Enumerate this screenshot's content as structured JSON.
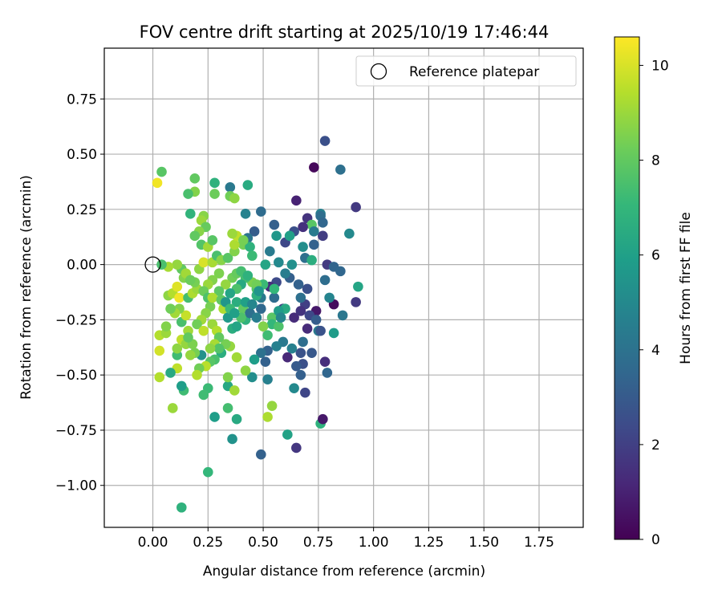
{
  "chart_data": {
    "type": "scatter",
    "title": "FOV centre drift starting at 2025/10/19 17:46:44",
    "xlabel": "Angular distance from reference (arcmin)",
    "ylabel": "Rotation from reference (arcmin)",
    "xlim": [
      -0.22,
      1.95
    ],
    "ylim": [
      -1.19,
      0.98
    ],
    "xticks": [
      0.0,
      0.25,
      0.5,
      0.75,
      1.0,
      1.25,
      1.5,
      1.75
    ],
    "xtick_labels": [
      "0.00",
      "0.25",
      "0.50",
      "0.75",
      "1.00",
      "1.25",
      "1.50",
      "1.75"
    ],
    "yticks": [
      -1.0,
      -0.75,
      -0.5,
      -0.25,
      0.0,
      0.25,
      0.5,
      0.75
    ],
    "ytick_labels": [
      "−1.00",
      "−0.75",
      "−0.50",
      "−0.25",
      "0.00",
      "0.25",
      "0.50",
      "0.75"
    ],
    "grid": true,
    "legend": {
      "position": "top-right",
      "entries": [
        "Reference platepar"
      ]
    },
    "reference_point": {
      "label": "Reference platepar",
      "x": 0.0,
      "y": 0.0
    },
    "colorbar": {
      "label": "Hours from first FF file",
      "colormap": "viridis",
      "range": [
        0,
        10.6
      ],
      "ticks": [
        0,
        2,
        4,
        6,
        8,
        10
      ],
      "tick_labels": [
        "0",
        "2",
        "4",
        "6",
        "8",
        "10"
      ]
    },
    "points": [
      [
        0.02,
        0.37,
        10.4
      ],
      [
        0.04,
        0.42,
        7.8
      ],
      [
        0.19,
        0.39,
        8.0
      ],
      [
        0.19,
        0.33,
        8.6
      ],
      [
        0.16,
        0.32,
        7.5
      ],
      [
        0.17,
        0.23,
        6.9
      ],
      [
        0.23,
        0.22,
        8.7
      ],
      [
        0.22,
        0.2,
        9.0
      ],
      [
        0.24,
        0.17,
        8.1
      ],
      [
        0.21,
        0.15,
        8.7
      ],
      [
        0.19,
        0.13,
        8.0
      ],
      [
        0.28,
        0.37,
        6.8
      ],
      [
        0.28,
        0.32,
        8.2
      ],
      [
        0.35,
        0.35,
        4.3
      ],
      [
        0.35,
        0.31,
        8.3
      ],
      [
        0.37,
        0.3,
        8.8
      ],
      [
        0.43,
        0.36,
        6.5
      ],
      [
        0.42,
        0.23,
        4.7
      ],
      [
        0.49,
        0.24,
        3.7
      ],
      [
        0.55,
        0.18,
        3.2
      ],
      [
        0.65,
        0.29,
        1.0
      ],
      [
        0.73,
        0.44,
        0.2
      ],
      [
        0.78,
        0.56,
        2.6
      ],
      [
        0.85,
        0.43,
        3.9
      ],
      [
        0.92,
        0.26,
        1.8
      ],
      [
        0.89,
        0.14,
        5.0
      ],
      [
        0.7,
        0.21,
        1.6
      ],
      [
        0.76,
        0.23,
        4.6
      ],
      [
        0.76,
        0.22,
        3.8
      ],
      [
        0.72,
        0.18,
        7.8
      ],
      [
        0.77,
        0.19,
        3.5
      ],
      [
        0.77,
        0.13,
        1.9
      ],
      [
        0.73,
        0.15,
        4.4
      ],
      [
        0.68,
        0.17,
        1.5
      ],
      [
        0.64,
        0.15,
        2.6
      ],
      [
        0.6,
        0.1,
        2.3
      ],
      [
        0.68,
        0.08,
        5.2
      ],
      [
        0.73,
        0.09,
        3.3
      ],
      [
        0.62,
        0.13,
        6.0
      ],
      [
        0.56,
        0.13,
        5.6
      ],
      [
        0.46,
        0.15,
        3.1
      ],
      [
        0.43,
        0.12,
        4.1
      ],
      [
        0.41,
        0.09,
        8.4
      ],
      [
        0.44,
        0.08,
        6.8
      ],
      [
        0.45,
        0.04,
        7.2
      ],
      [
        0.53,
        0.06,
        4.4
      ],
      [
        0.57,
        0.01,
        5.0
      ],
      [
        0.51,
        0.0,
        6.2
      ],
      [
        0.63,
        0.0,
        5.3
      ],
      [
        0.69,
        0.03,
        3.9
      ],
      [
        0.72,
        0.02,
        6.6
      ],
      [
        0.79,
        0.0,
        1.8
      ],
      [
        0.82,
        -0.01,
        3.4
      ],
      [
        0.85,
        -0.03,
        3.5
      ],
      [
        0.78,
        -0.07,
        3.8
      ],
      [
        0.93,
        -0.1,
        6.2
      ],
      [
        0.92,
        -0.17,
        1.8
      ],
      [
        0.86,
        -0.23,
        4.2
      ],
      [
        0.82,
        -0.18,
        0.3
      ],
      [
        0.8,
        -0.15,
        4.8
      ],
      [
        0.74,
        -0.21,
        0.7
      ],
      [
        0.69,
        -0.18,
        2.0
      ],
      [
        0.67,
        -0.15,
        3.9
      ],
      [
        0.7,
        -0.11,
        2.6
      ],
      [
        0.66,
        -0.09,
        3.3
      ],
      [
        0.62,
        -0.06,
        3.2
      ],
      [
        0.6,
        -0.04,
        4.5
      ],
      [
        0.56,
        -0.08,
        2.4
      ],
      [
        0.53,
        -0.1,
        1.4
      ],
      [
        0.5,
        -0.09,
        7.2
      ],
      [
        0.45,
        -0.08,
        8.5
      ],
      [
        0.47,
        -0.11,
        7.7
      ],
      [
        0.42,
        -0.06,
        7.4
      ],
      [
        0.4,
        -0.09,
        6.4
      ],
      [
        0.38,
        -0.11,
        7.6
      ],
      [
        0.35,
        -0.13,
        6.2
      ],
      [
        0.38,
        -0.17,
        6.6
      ],
      [
        0.41,
        -0.2,
        8.0
      ],
      [
        0.42,
        -0.25,
        6.8
      ],
      [
        0.44,
        -0.22,
        3.9
      ],
      [
        0.49,
        -0.2,
        3.6
      ],
      [
        0.49,
        -0.15,
        4.3
      ],
      [
        0.55,
        -0.15,
        3.7
      ],
      [
        0.59,
        -0.2,
        2.1
      ],
      [
        0.54,
        -0.24,
        7.8
      ],
      [
        0.54,
        -0.27,
        7.0
      ],
      [
        0.5,
        -0.28,
        8.6
      ],
      [
        0.52,
        -0.32,
        7.3
      ],
      [
        0.57,
        -0.28,
        7.6
      ],
      [
        0.6,
        -0.2,
        6.4
      ],
      [
        0.64,
        -0.24,
        1.3
      ],
      [
        0.67,
        -0.21,
        1.6
      ],
      [
        0.71,
        -0.23,
        2.3
      ],
      [
        0.74,
        -0.25,
        3.1
      ],
      [
        0.7,
        -0.29,
        1.3
      ],
      [
        0.75,
        -0.3,
        4.3
      ],
      [
        0.76,
        -0.3,
        2.7
      ],
      [
        0.82,
        -0.31,
        5.8
      ],
      [
        0.72,
        -0.4,
        2.9
      ],
      [
        0.68,
        -0.45,
        2.6
      ],
      [
        0.65,
        -0.46,
        3.0
      ],
      [
        0.67,
        -0.4,
        2.7
      ],
      [
        0.68,
        -0.35,
        3.8
      ],
      [
        0.63,
        -0.38,
        4.6
      ],
      [
        0.61,
        -0.42,
        1.2
      ],
      [
        0.59,
        -0.35,
        4.3
      ],
      [
        0.56,
        -0.37,
        4.6
      ],
      [
        0.52,
        -0.39,
        3.3
      ],
      [
        0.49,
        -0.4,
        4.0
      ],
      [
        0.51,
        -0.44,
        3.3
      ],
      [
        0.46,
        -0.43,
        5.9
      ],
      [
        0.45,
        -0.51,
        5.2
      ],
      [
        0.52,
        -0.52,
        4.6
      ],
      [
        0.54,
        -0.64,
        8.9
      ],
      [
        0.52,
        -0.69,
        9.3
      ],
      [
        0.61,
        -0.77,
        6.1
      ],
      [
        0.64,
        -0.56,
        5.0
      ],
      [
        0.67,
        -0.5,
        3.2
      ],
      [
        0.69,
        -0.58,
        2.2
      ],
      [
        0.78,
        -0.44,
        1.4
      ],
      [
        0.79,
        -0.49,
        3.5
      ],
      [
        0.76,
        -0.72,
        6.8
      ],
      [
        0.77,
        -0.7,
        0.7
      ],
      [
        0.65,
        -0.83,
        1.7
      ],
      [
        0.49,
        -0.86,
        3.3
      ],
      [
        0.36,
        -0.79,
        5.4
      ],
      [
        0.38,
        -0.7,
        6.4
      ],
      [
        0.34,
        -0.65,
        7.4
      ],
      [
        0.34,
        -0.55,
        6.3
      ],
      [
        0.37,
        -0.57,
        9.1
      ],
      [
        0.34,
        -0.51,
        8.6
      ],
      [
        0.42,
        -0.48,
        8.8
      ],
      [
        0.38,
        -0.42,
        9.1
      ],
      [
        0.35,
        -0.37,
        8.9
      ],
      [
        0.33,
        -0.36,
        8.4
      ],
      [
        0.31,
        -0.4,
        6.6
      ],
      [
        0.28,
        -0.43,
        7.5
      ],
      [
        0.26,
        -0.44,
        7.8
      ],
      [
        0.24,
        -0.46,
        9.5
      ],
      [
        0.21,
        -0.47,
        8.3
      ],
      [
        0.2,
        -0.5,
        9.4
      ],
      [
        0.25,
        -0.56,
        7.2
      ],
      [
        0.23,
        -0.59,
        7.3
      ],
      [
        0.28,
        -0.69,
        5.9
      ],
      [
        0.25,
        -0.94,
        7.0
      ],
      [
        0.13,
        -1.1,
        6.8
      ],
      [
        0.14,
        -0.57,
        7.3
      ],
      [
        0.13,
        -0.55,
        5.9
      ],
      [
        0.09,
        -0.65,
        9.0
      ],
      [
        0.11,
        -0.47,
        9.6
      ],
      [
        0.08,
        -0.49,
        6.4
      ],
      [
        0.03,
        -0.51,
        9.4
      ],
      [
        0.03,
        -0.39,
        9.9
      ],
      [
        0.03,
        -0.32,
        9.4
      ],
      [
        0.06,
        -0.31,
        9.0
      ],
      [
        0.06,
        -0.28,
        8.6
      ],
      [
        0.11,
        -0.41,
        7.3
      ],
      [
        0.11,
        -0.38,
        8.8
      ],
      [
        0.13,
        -0.34,
        9.6
      ],
      [
        0.15,
        -0.36,
        8.9
      ],
      [
        0.16,
        -0.3,
        9.1
      ],
      [
        0.13,
        -0.26,
        7.5
      ],
      [
        0.15,
        -0.23,
        9.7
      ],
      [
        0.12,
        -0.2,
        8.6
      ],
      [
        0.1,
        -0.22,
        9.1
      ],
      [
        0.08,
        -0.2,
        8.3
      ],
      [
        0.07,
        -0.14,
        8.8
      ],
      [
        0.09,
        -0.13,
        9.4
      ],
      [
        0.11,
        -0.1,
        10.1
      ],
      [
        0.12,
        -0.15,
        10.4
      ],
      [
        0.16,
        -0.15,
        7.4
      ],
      [
        0.18,
        -0.13,
        9.3
      ],
      [
        0.2,
        -0.11,
        9.0
      ],
      [
        0.19,
        -0.08,
        8.4
      ],
      [
        0.14,
        -0.06,
        8.6
      ],
      [
        0.13,
        -0.02,
        8.0
      ],
      [
        0.11,
        0.0,
        8.9
      ],
      [
        0.07,
        -0.01,
        9.2
      ],
      [
        0.04,
        0.0,
        7.5
      ],
      [
        0.15,
        -0.04,
        9.1
      ],
      [
        0.17,
        -0.07,
        8.2
      ],
      [
        0.21,
        -0.02,
        8.8
      ],
      [
        0.23,
        0.01,
        10.0
      ],
      [
        0.27,
        0.01,
        9.2
      ],
      [
        0.29,
        0.04,
        7.5
      ],
      [
        0.31,
        0.02,
        8.7
      ],
      [
        0.34,
        0.03,
        7.8
      ],
      [
        0.37,
        0.06,
        8.6
      ],
      [
        0.37,
        0.09,
        9.3
      ],
      [
        0.38,
        0.13,
        9.6
      ],
      [
        0.36,
        0.14,
        9.0
      ],
      [
        0.41,
        0.11,
        8.4
      ],
      [
        0.22,
        0.09,
        7.7
      ],
      [
        0.25,
        0.08,
        9.1
      ],
      [
        0.27,
        0.11,
        7.8
      ],
      [
        0.3,
        -0.04,
        8.5
      ],
      [
        0.27,
        -0.07,
        8.6
      ],
      [
        0.25,
        -0.09,
        9.0
      ],
      [
        0.23,
        -0.12,
        8.2
      ],
      [
        0.25,
        -0.15,
        7.6
      ],
      [
        0.26,
        -0.19,
        8.4
      ],
      [
        0.24,
        -0.22,
        8.7
      ],
      [
        0.22,
        -0.25,
        9.1
      ],
      [
        0.2,
        -0.27,
        8.3
      ],
      [
        0.23,
        -0.3,
        9.6
      ],
      [
        0.27,
        -0.27,
        9.0
      ],
      [
        0.29,
        -0.3,
        9.4
      ],
      [
        0.3,
        -0.33,
        8.0
      ],
      [
        0.28,
        -0.36,
        9.2
      ],
      [
        0.3,
        -0.38,
        7.7
      ],
      [
        0.26,
        -0.38,
        8.8
      ],
      [
        0.22,
        -0.41,
        5.4
      ],
      [
        0.19,
        -0.4,
        8.4
      ],
      [
        0.17,
        -0.41,
        8.9
      ],
      [
        0.18,
        -0.36,
        8.5
      ],
      [
        0.16,
        -0.33,
        8.0
      ],
      [
        0.32,
        -0.2,
        9.3
      ],
      [
        0.34,
        -0.24,
        5.7
      ],
      [
        0.36,
        -0.29,
        6.6
      ],
      [
        0.38,
        -0.28,
        6.2
      ],
      [
        0.4,
        -0.24,
        7.6
      ],
      [
        0.42,
        -0.17,
        6.0
      ],
      [
        0.45,
        -0.18,
        4.9
      ],
      [
        0.47,
        -0.24,
        4.5
      ],
      [
        0.47,
        -0.14,
        6.7
      ],
      [
        0.36,
        -0.06,
        8.3
      ],
      [
        0.33,
        -0.09,
        8.9
      ],
      [
        0.3,
        -0.12,
        7.9
      ],
      [
        0.27,
        -0.15,
        9.3
      ],
      [
        0.31,
        -0.16,
        8.0
      ],
      [
        0.33,
        -0.17,
        5.6
      ],
      [
        0.35,
        -0.2,
        7.2
      ],
      [
        0.37,
        -0.22,
        6.0
      ],
      [
        0.38,
        -0.04,
        8.1
      ],
      [
        0.4,
        -0.03,
        7.4
      ],
      [
        0.43,
        -0.05,
        6.8
      ],
      [
        0.47,
        -0.09,
        8.3
      ],
      [
        0.48,
        -0.12,
        5.5
      ],
      [
        0.55,
        -0.11,
        7.0
      ],
      [
        0.57,
        -0.21,
        5.8
      ],
      [
        0.58,
        -0.24,
        4.9
      ]
    ]
  }
}
